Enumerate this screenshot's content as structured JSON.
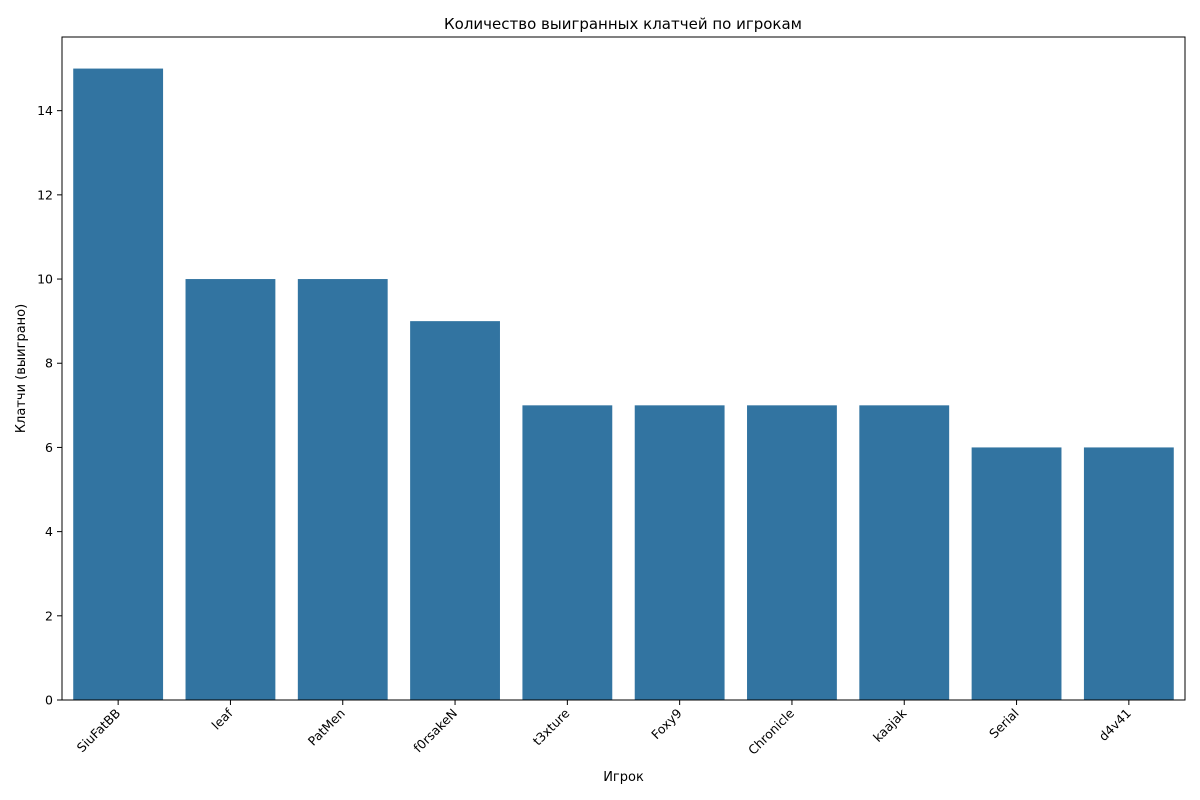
{
  "chart_data": {
    "type": "bar",
    "title": "Количество выигранных клатчей по игрокам",
    "xlabel": "Игрок",
    "ylabel": "Клатчи (выиграно)",
    "categories": [
      "SiuFatBB",
      "leaf",
      "PatMen",
      "f0rsakeN",
      "t3xture",
      "Foxy9",
      "Chronicle",
      "kaajak",
      "Serial",
      "d4v41"
    ],
    "values": [
      15,
      10,
      10,
      9,
      7,
      7,
      7,
      7,
      6,
      6
    ],
    "ylim": [
      0,
      15.75
    ],
    "yticks": [
      0,
      2,
      4,
      6,
      8,
      10,
      12,
      14
    ],
    "grid": false,
    "legend": "none",
    "bar_color": "#3274a1",
    "xtick_rotation_deg": 45
  }
}
